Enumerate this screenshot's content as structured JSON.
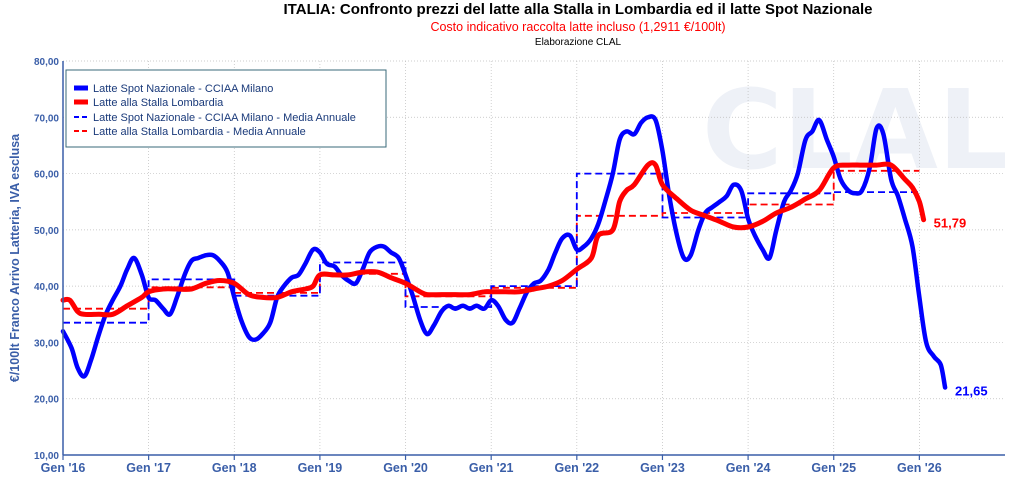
{
  "chart_data": {
    "type": "line",
    "title": "ITALIA: Confronto prezzi del latte alla Stalla in Lombardia ed il latte Spot Nazionale",
    "subtitle": "Costo indicativo raccolta latte incluso (1,2911 €/100lt)",
    "credit": "Elaborazione CLAL",
    "ylabel": "€/100lt Franco Arrivo Latteria, IVA esclusa",
    "ylim": [
      10,
      80
    ],
    "xlim": [
      2016.0,
      2027.0
    ],
    "grid": true,
    "legend_position": "top-left",
    "watermark": "CLAL",
    "y_ticks": [
      "10,00",
      "20,00",
      "30,00",
      "40,00",
      "50,00",
      "60,00",
      "70,00",
      "80,00"
    ],
    "y_tick_values": [
      10,
      20,
      30,
      40,
      50,
      60,
      70,
      80
    ],
    "x_ticks": [
      "Gen '16",
      "Gen '17",
      "Gen '18",
      "Gen '19",
      "Gen '20",
      "Gen '21",
      "Gen '22",
      "Gen '23",
      "Gen '24",
      "Gen '25",
      "Gen '26"
    ],
    "x_tick_values": [
      2016,
      2017,
      2018,
      2019,
      2020,
      2021,
      2022,
      2023,
      2024,
      2025,
      2026
    ],
    "series": [
      {
        "name": "Latte Spot Nazionale - CCIAA Milano",
        "color": "#0000ff",
        "style": "solid",
        "end_label": "21,65",
        "points": [
          [
            2016.0,
            32.0
          ],
          [
            2016.1,
            29.0
          ],
          [
            2016.17,
            25.5
          ],
          [
            2016.25,
            24.0
          ],
          [
            2016.33,
            27.0
          ],
          [
            2016.42,
            31.5
          ],
          [
            2016.5,
            35.0
          ],
          [
            2016.58,
            37.5
          ],
          [
            2016.67,
            40.0
          ],
          [
            2016.75,
            43.0
          ],
          [
            2016.83,
            45.0
          ],
          [
            2016.92,
            42.0
          ],
          [
            2017.0,
            38.0
          ],
          [
            2017.08,
            37.5
          ],
          [
            2017.17,
            36.0
          ],
          [
            2017.25,
            35.0
          ],
          [
            2017.33,
            38.0
          ],
          [
            2017.42,
            42.0
          ],
          [
            2017.5,
            44.5
          ],
          [
            2017.58,
            45.0
          ],
          [
            2017.67,
            45.5
          ],
          [
            2017.75,
            45.5
          ],
          [
            2017.83,
            44.5
          ],
          [
            2017.92,
            42.5
          ],
          [
            2018.0,
            38.0
          ],
          [
            2018.08,
            34.0
          ],
          [
            2018.17,
            31.0
          ],
          [
            2018.25,
            30.5
          ],
          [
            2018.33,
            31.5
          ],
          [
            2018.42,
            33.5
          ],
          [
            2018.5,
            38.0
          ],
          [
            2018.58,
            40.0
          ],
          [
            2018.67,
            41.5
          ],
          [
            2018.75,
            42.0
          ],
          [
            2018.83,
            44.0
          ],
          [
            2018.92,
            46.5
          ],
          [
            2019.0,
            46.0
          ],
          [
            2019.08,
            44.0
          ],
          [
            2019.17,
            43.5
          ],
          [
            2019.25,
            42.0
          ],
          [
            2019.33,
            41.0
          ],
          [
            2019.42,
            40.5
          ],
          [
            2019.5,
            43.0
          ],
          [
            2019.58,
            46.0
          ],
          [
            2019.67,
            47.0
          ],
          [
            2019.75,
            47.0
          ],
          [
            2019.83,
            46.0
          ],
          [
            2019.92,
            45.0
          ],
          [
            2020.0,
            42.0
          ],
          [
            2020.08,
            38.5
          ],
          [
            2020.17,
            34.0
          ],
          [
            2020.25,
            31.5
          ],
          [
            2020.33,
            33.0
          ],
          [
            2020.42,
            35.5
          ],
          [
            2020.5,
            36.5
          ],
          [
            2020.58,
            36.0
          ],
          [
            2020.67,
            36.5
          ],
          [
            2020.75,
            36.0
          ],
          [
            2020.83,
            36.5
          ],
          [
            2020.92,
            36.0
          ],
          [
            2021.0,
            37.5
          ],
          [
            2021.08,
            36.5
          ],
          [
            2021.17,
            34.0
          ],
          [
            2021.25,
            33.5
          ],
          [
            2021.33,
            36.0
          ],
          [
            2021.42,
            39.0
          ],
          [
            2021.5,
            40.5
          ],
          [
            2021.58,
            41.0
          ],
          [
            2021.67,
            43.0
          ],
          [
            2021.75,
            46.0
          ],
          [
            2021.83,
            48.5
          ],
          [
            2021.92,
            49.0
          ],
          [
            2022.0,
            46.5
          ],
          [
            2022.08,
            47.0
          ],
          [
            2022.17,
            48.5
          ],
          [
            2022.25,
            51.0
          ],
          [
            2022.33,
            55.0
          ],
          [
            2022.42,
            60.0
          ],
          [
            2022.5,
            66.0
          ],
          [
            2022.58,
            67.5
          ],
          [
            2022.67,
            67.0
          ],
          [
            2022.75,
            69.0
          ],
          [
            2022.83,
            70.0
          ],
          [
            2022.92,
            69.5
          ],
          [
            2023.0,
            64.0
          ],
          [
            2023.08,
            56.0
          ],
          [
            2023.17,
            49.0
          ],
          [
            2023.25,
            45.0
          ],
          [
            2023.33,
            45.5
          ],
          [
            2023.42,
            50.0
          ],
          [
            2023.5,
            53.0
          ],
          [
            2023.58,
            54.0
          ],
          [
            2023.67,
            55.0
          ],
          [
            2023.75,
            56.0
          ],
          [
            2023.83,
            58.0
          ],
          [
            2023.92,
            57.0
          ],
          [
            2024.0,
            52.0
          ],
          [
            2024.08,
            49.0
          ],
          [
            2024.17,
            46.5
          ],
          [
            2024.25,
            45.0
          ],
          [
            2024.33,
            50.0
          ],
          [
            2024.42,
            55.0
          ],
          [
            2024.5,
            57.0
          ],
          [
            2024.58,
            60.0
          ],
          [
            2024.67,
            66.0
          ],
          [
            2024.75,
            67.5
          ],
          [
            2024.83,
            69.5
          ],
          [
            2024.92,
            66.0
          ],
          [
            2025.0,
            63.0
          ],
          [
            2025.08,
            59.0
          ],
          [
            2025.17,
            57.0
          ],
          [
            2025.25,
            56.5
          ],
          [
            2025.33,
            57.0
          ],
          [
            2025.42,
            61.0
          ],
          [
            2025.5,
            68.0
          ],
          [
            2025.58,
            67.0
          ],
          [
            2025.67,
            59.0
          ],
          [
            2025.75,
            56.0
          ],
          [
            2025.83,
            52.0
          ],
          [
            2025.92,
            47.0
          ],
          [
            2026.0,
            38.0
          ],
          [
            2026.08,
            30.0
          ],
          [
            2026.17,
            27.5
          ],
          [
            2026.25,
            26.0
          ],
          [
            2026.3,
            22.0
          ]
        ]
      },
      {
        "name": "Latte alla Stalla Lombardia",
        "color": "#ff0000",
        "style": "solid",
        "end_label": "51,79",
        "points": [
          [
            2016.0,
            37.5
          ],
          [
            2016.08,
            37.5
          ],
          [
            2016.17,
            35.5
          ],
          [
            2016.25,
            35.0
          ],
          [
            2016.42,
            35.0
          ],
          [
            2016.58,
            35.0
          ],
          [
            2016.75,
            36.5
          ],
          [
            2016.92,
            38.0
          ],
          [
            2017.0,
            39.0
          ],
          [
            2017.17,
            39.5
          ],
          [
            2017.33,
            39.5
          ],
          [
            2017.5,
            39.5
          ],
          [
            2017.67,
            40.5
          ],
          [
            2017.83,
            41.0
          ],
          [
            2018.0,
            40.5
          ],
          [
            2018.17,
            38.5
          ],
          [
            2018.33,
            38.0
          ],
          [
            2018.5,
            38.0
          ],
          [
            2018.67,
            39.0
          ],
          [
            2018.83,
            39.5
          ],
          [
            2018.92,
            40.0
          ],
          [
            2019.0,
            42.0
          ],
          [
            2019.17,
            42.0
          ],
          [
            2019.33,
            42.0
          ],
          [
            2019.5,
            42.5
          ],
          [
            2019.67,
            42.5
          ],
          [
            2019.83,
            41.5
          ],
          [
            2020.0,
            40.5
          ],
          [
            2020.17,
            39.0
          ],
          [
            2020.25,
            38.5
          ],
          [
            2020.42,
            38.5
          ],
          [
            2020.58,
            38.5
          ],
          [
            2020.75,
            38.5
          ],
          [
            2020.92,
            39.0
          ],
          [
            2021.0,
            39.0
          ],
          [
            2021.17,
            39.0
          ],
          [
            2021.33,
            39.0
          ],
          [
            2021.5,
            39.5
          ],
          [
            2021.67,
            40.0
          ],
          [
            2021.83,
            41.0
          ],
          [
            2022.0,
            43.0
          ],
          [
            2022.17,
            45.0
          ],
          [
            2022.25,
            49.0
          ],
          [
            2022.42,
            50.0
          ],
          [
            2022.5,
            55.0
          ],
          [
            2022.58,
            57.0
          ],
          [
            2022.67,
            58.0
          ],
          [
            2022.83,
            61.5
          ],
          [
            2022.92,
            61.5
          ],
          [
            2023.0,
            58.0
          ],
          [
            2023.17,
            55.5
          ],
          [
            2023.33,
            53.5
          ],
          [
            2023.5,
            52.5
          ],
          [
            2023.67,
            51.5
          ],
          [
            2023.83,
            50.5
          ],
          [
            2024.0,
            50.5
          ],
          [
            2024.17,
            51.5
          ],
          [
            2024.33,
            53.0
          ],
          [
            2024.5,
            54.0
          ],
          [
            2024.67,
            55.5
          ],
          [
            2024.83,
            57.0
          ],
          [
            2025.0,
            61.0
          ],
          [
            2025.17,
            61.5
          ],
          [
            2025.33,
            61.5
          ],
          [
            2025.5,
            61.5
          ],
          [
            2025.67,
            61.5
          ],
          [
            2025.83,
            59.0
          ],
          [
            2025.92,
            57.5
          ],
          [
            2026.0,
            55.0
          ],
          [
            2026.05,
            51.8
          ]
        ]
      },
      {
        "name": "Latte Spot Nazionale - CCIAA Milano - Media Annuale",
        "color": "#0000ff",
        "style": "dashed",
        "segments": [
          [
            2016.0,
            2017.0,
            33.5
          ],
          [
            2017.0,
            2018.0,
            41.2
          ],
          [
            2018.0,
            2019.0,
            38.3
          ],
          [
            2019.0,
            2020.0,
            44.2
          ],
          [
            2020.0,
            2021.0,
            36.3
          ],
          [
            2021.0,
            2022.0,
            40.0
          ],
          [
            2022.0,
            2023.0,
            60.0
          ],
          [
            2023.0,
            2024.0,
            52.2
          ],
          [
            2024.0,
            2025.0,
            56.5
          ],
          [
            2025.0,
            2026.0,
            56.7
          ]
        ]
      },
      {
        "name": "Latte alla Stalla Lombardia - Media Annuale",
        "color": "#ff0000",
        "style": "dashed",
        "segments": [
          [
            2016.0,
            2017.0,
            36.0
          ],
          [
            2017.0,
            2018.0,
            39.8
          ],
          [
            2018.0,
            2019.0,
            38.8
          ],
          [
            2019.0,
            2020.0,
            42.2
          ],
          [
            2020.0,
            2021.0,
            38.2
          ],
          [
            2021.0,
            2022.0,
            39.7
          ],
          [
            2022.0,
            2023.0,
            52.5
          ],
          [
            2023.0,
            2024.0,
            53.0
          ],
          [
            2024.0,
            2025.0,
            54.5
          ],
          [
            2025.0,
            2026.0,
            60.5
          ]
        ]
      }
    ]
  }
}
